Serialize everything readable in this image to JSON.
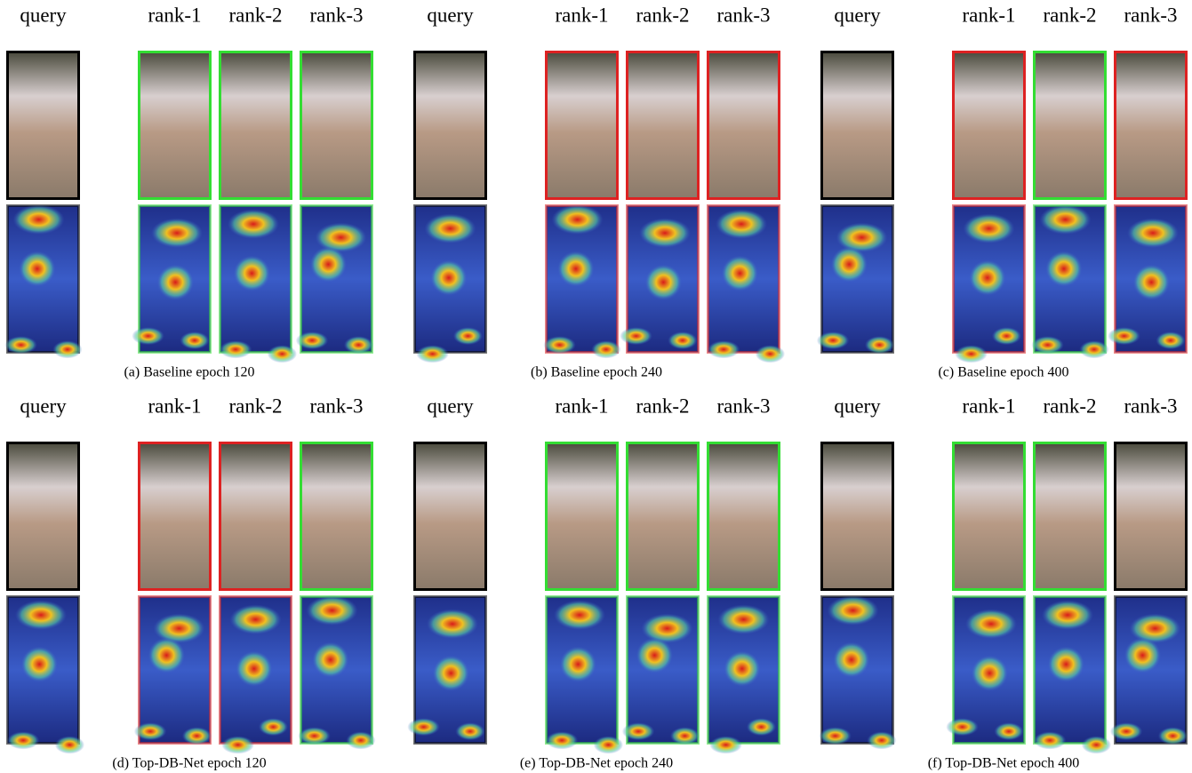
{
  "panels": [
    {
      "caption": "(a) Baseline epoch 120",
      "labels": [
        "query",
        "rank-1",
        "rank-2",
        "rank-3"
      ],
      "borders": [
        "#000000",
        "#33dd33",
        "#33dd33",
        "#33dd33"
      ]
    },
    {
      "caption": "(b) Baseline epoch 240",
      "labels": [
        "query",
        "rank-1",
        "rank-2",
        "rank-3"
      ],
      "borders": [
        "#000000",
        "#dd2222",
        "#dd2222",
        "#dd2222"
      ]
    },
    {
      "caption": "(c) Baseline epoch 400",
      "labels": [
        "query",
        "rank-1",
        "rank-2",
        "rank-3"
      ],
      "borders": [
        "#000000",
        "#dd2222",
        "#33dd33",
        "#dd2222"
      ]
    },
    {
      "caption": "(d) Top-DB-Net epoch 120",
      "labels": [
        "query",
        "rank-1",
        "rank-2",
        "rank-3"
      ],
      "borders": [
        "#000000",
        "#dd2222",
        "#dd2222",
        "#33dd33"
      ]
    },
    {
      "caption": "(e) Top-DB-Net epoch 240",
      "labels": [
        "query",
        "rank-1",
        "rank-2",
        "rank-3"
      ],
      "borders": [
        "#000000",
        "#33dd33",
        "#33dd33",
        "#33dd33"
      ]
    },
    {
      "caption": "(f) Top-DB-Net epoch 400",
      "labels": [
        "query",
        "rank-1",
        "rank-2",
        "rank-3"
      ],
      "borders": [
        "#000000",
        "#33dd33",
        "#33dd33",
        "#000000"
      ]
    }
  ]
}
